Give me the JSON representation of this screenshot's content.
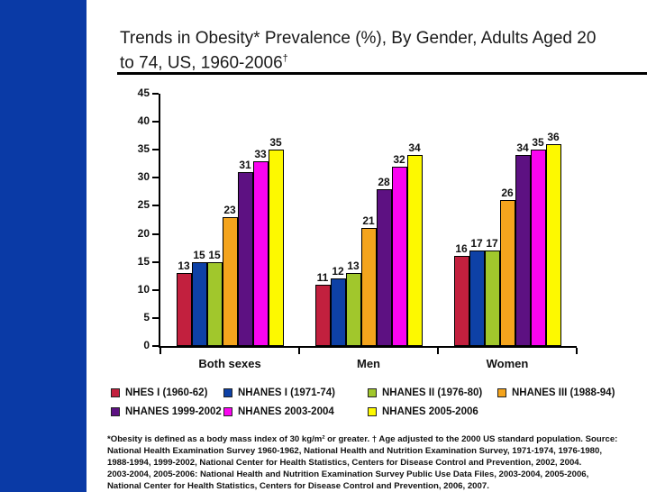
{
  "sidebar": {
    "color": "#0a3aa6"
  },
  "title": {
    "line1": "Trends in Obesity* Prevalence (%), By Gender, Adults Aged 20",
    "line2": "to 74, US, 1960-2006",
    "sup": "†"
  },
  "chart_data": {
    "type": "bar",
    "title": "Trends in Obesity Prevalence (%), By Gender, Adults Aged 20 to 74, US, 1960-2006",
    "categories": [
      "Both sexes",
      "Men",
      "Women"
    ],
    "series": [
      {
        "name": "NHES I (1960-62)",
        "color": "#c2203e",
        "values": [
          13,
          11,
          16
        ]
      },
      {
        "name": "NHANES I (1971-74)",
        "color": "#0e41a6",
        "values": [
          15,
          12,
          17
        ]
      },
      {
        "name": "NHANES II (1976-80)",
        "color": "#a1c72c",
        "values": [
          15,
          13,
          17
        ]
      },
      {
        "name": "NHANES III (1988-94)",
        "color": "#f4a41d",
        "values": [
          23,
          21,
          26
        ]
      },
      {
        "name": "NHANES 1999-2002",
        "color": "#5d1182",
        "values": [
          31,
          28,
          34
        ]
      },
      {
        "name": "NHANES 2003-2004",
        "color": "#fa05f0",
        "values": [
          33,
          32,
          35
        ]
      },
      {
        "name": "NHANES 2005-2006",
        "color": "#fdf900",
        "values": [
          35,
          34,
          36
        ]
      }
    ],
    "ylim": [
      0,
      45
    ],
    "yticks": [
      45,
      40,
      35,
      30,
      25,
      20,
      15,
      10,
      5,
      0
    ],
    "xlabel": "",
    "ylabel": "",
    "grid": false,
    "legend_position": "bottom"
  },
  "footnote": {
    "lines": [
      "*Obesity is defined as a body mass index of 30 kg/m² or greater. † Age adjusted to the 2000 US standard population. Source:",
      "National Health Examination Survey 1960-1962, National Health and Nutrition Examination Survey, 1971-1974, 1976-1980,",
      "1988-1994, 1999-2002, National Center for Health Statistics, Centers for Disease Control and Prevention, 2002, 2004.",
      "2003-2004, 2005-2006: National Health and Nutrition Examination Survey Public Use Data Files, 2003-2004, 2005-2006,",
      "National Center for Health Statistics, Centers for Disease Control and Prevention, 2006, 2007."
    ]
  }
}
